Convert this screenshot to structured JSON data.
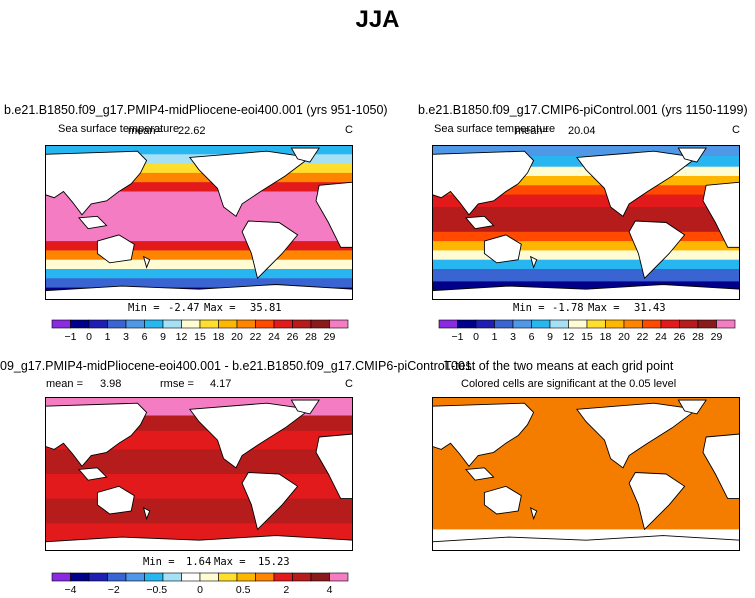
{
  "figure_title": "JJA",
  "colors": {
    "sst_levels": [
      "#8a2be2",
      "#00008b",
      "#1e1eb4",
      "#3a64d2",
      "#4f98e8",
      "#27b6f0",
      "#a6e0f5",
      "#fffbd2",
      "#ffde2d",
      "#ffb600",
      "#ff8500",
      "#ff4a00",
      "#e31a1c",
      "#b71c1c",
      "#8b1a1a",
      "#f47cc2"
    ],
    "diff_levels": [
      "#8a2be2",
      "#00008b",
      "#1e1eb4",
      "#3a64d2",
      "#4f98e8",
      "#27b6f0",
      "#a6e0f5",
      "#ffffff",
      "#fffbd2",
      "#ffde2d",
      "#ffb600",
      "#ff8500",
      "#e31a1c",
      "#b71c1c",
      "#8b1a1a",
      "#f47cc2"
    ],
    "ttest_fill": "#f47d00"
  },
  "chart_data": [
    {
      "type": "heatmap",
      "panel": "top-left",
      "title": "b.e21.B1850.f09_g17.PMIP4-midPliocene-eoi400.001 (yrs 951-1050)",
      "variable_label": "Sea surface temperature",
      "mean_label": "mean=",
      "mean_value": "22.62",
      "units": "C",
      "min_label": "Min =",
      "min_value": "-2.47",
      "max_label": "Max =",
      "max_value": "35.81",
      "colorbar_ticks": [
        "-1",
        "0",
        "1",
        "3",
        "6",
        "9",
        "12",
        "15",
        "18",
        "20",
        "22",
        "24",
        "26",
        "28",
        "29"
      ]
    },
    {
      "type": "heatmap",
      "panel": "top-right",
      "title": "b.e21.B1850.f09_g17.CMIP6-piControl.001 (yrs 1150-1199)",
      "variable_label": "Sea surface temperature",
      "mean_label": "mean=",
      "mean_value": "20.04",
      "units": "C",
      "min_label": "Min =",
      "min_value": "-1.78",
      "max_label": "Max =",
      "max_value": "31.43",
      "colorbar_ticks": [
        "-1",
        "0",
        "1",
        "3",
        "6",
        "9",
        "12",
        "15",
        "18",
        "20",
        "22",
        "24",
        "26",
        "28",
        "29"
      ]
    },
    {
      "type": "heatmap",
      "panel": "bottom-left",
      "title": "09_g17.PMIP4-midPliocene-eoi400.001 - b.e21.B1850.f09_g17.CMIP6-piControl.001",
      "mean_label": "mean =",
      "mean_value": "3.98",
      "rmse_label": "rmse =",
      "rmse_value": "4.17",
      "units": "C",
      "min_label": "Min =",
      "min_value": "1.64",
      "max_label": "Max =",
      "max_value": "15.23",
      "colorbar_ticks": [
        "-4",
        "-2",
        "-0.5",
        "0",
        "0.5",
        "2",
        "4"
      ]
    },
    {
      "type": "heatmap",
      "panel": "bottom-right",
      "title": "T-test of the two means at each grid point",
      "subtitle": "Colored cells are significant at the 0.05 level"
    }
  ]
}
